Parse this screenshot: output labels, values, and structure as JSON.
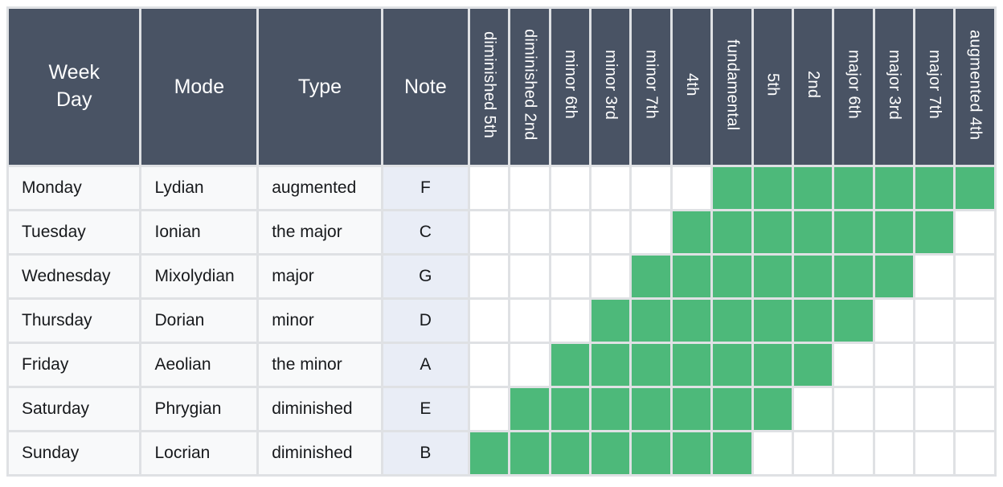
{
  "header": {
    "week_day": "Week\nDay",
    "mode": "Mode",
    "type": "Type",
    "note": "Note"
  },
  "colors": {
    "header_bg": "#495364",
    "highlight_green": "#4db97a",
    "note_column_bg": "#e9edf6",
    "row_bg": "#f8f9fa",
    "grid_border": "#dfe1e4",
    "header_text": "#ffffff",
    "body_text": "#17191c"
  },
  "chart_data": {
    "type": "table",
    "fixed_columns": [
      "Week Day",
      "Mode",
      "Type",
      "Note"
    ],
    "interval_columns": [
      "diminished 5th",
      "diminished 2nd",
      "minor 6th",
      "minor 3rd",
      "minor 7th",
      "4th",
      "fundamental",
      "5th",
      "2nd",
      "major 6th",
      "major 3rd",
      "major 7th",
      "augmented 4th"
    ],
    "legend": "green cell = interval present in mode",
    "rows": [
      {
        "week_day": "Monday",
        "mode": "Lydian",
        "type": "augmented",
        "note": "F",
        "matrix": [
          0,
          0,
          0,
          0,
          0,
          0,
          1,
          1,
          1,
          1,
          1,
          1,
          1
        ],
        "intervals_present": [
          "fundamental",
          "5th",
          "2nd",
          "major 6th",
          "major 3rd",
          "major 7th",
          "augmented 4th"
        ]
      },
      {
        "week_day": "Tuesday",
        "mode": "Ionian",
        "type": "the major",
        "note": "C",
        "matrix": [
          0,
          0,
          0,
          0,
          0,
          1,
          1,
          1,
          1,
          1,
          1,
          1,
          0
        ],
        "intervals_present": [
          "4th",
          "fundamental",
          "5th",
          "2nd",
          "major 6th",
          "major 3rd",
          "major 7th"
        ]
      },
      {
        "week_day": "Wednesday",
        "mode": "Mixolydian",
        "type": "major",
        "note": "G",
        "matrix": [
          0,
          0,
          0,
          0,
          1,
          1,
          1,
          1,
          1,
          1,
          1,
          0,
          0
        ],
        "intervals_present": [
          "minor 7th",
          "4th",
          "fundamental",
          "5th",
          "2nd",
          "major 6th",
          "major 3rd"
        ]
      },
      {
        "week_day": "Thursday",
        "mode": "Dorian",
        "type": "minor",
        "note": "D",
        "matrix": [
          0,
          0,
          0,
          1,
          1,
          1,
          1,
          1,
          1,
          1,
          0,
          0,
          0
        ],
        "intervals_present": [
          "minor 3rd",
          "minor 7th",
          "4th",
          "fundamental",
          "5th",
          "2nd",
          "major 6th"
        ]
      },
      {
        "week_day": "Friday",
        "mode": "Aeolian",
        "type": "the minor",
        "note": "A",
        "matrix": [
          0,
          0,
          1,
          1,
          1,
          1,
          1,
          1,
          1,
          0,
          0,
          0,
          0
        ],
        "intervals_present": [
          "minor 6th",
          "minor 3rd",
          "minor 7th",
          "4th",
          "fundamental",
          "5th",
          "2nd"
        ]
      },
      {
        "week_day": "Saturday",
        "mode": "Phrygian",
        "type": "diminished",
        "note": "E",
        "matrix": [
          0,
          1,
          1,
          1,
          1,
          1,
          1,
          1,
          0,
          0,
          0,
          0,
          0
        ],
        "intervals_present": [
          "diminished 2nd",
          "minor 6th",
          "minor 3rd",
          "minor 7th",
          "4th",
          "fundamental",
          "5th"
        ]
      },
      {
        "week_day": "Sunday",
        "mode": "Locrian",
        "type": "diminished",
        "note": "B",
        "matrix": [
          1,
          1,
          1,
          1,
          1,
          1,
          1,
          0,
          0,
          0,
          0,
          0,
          0
        ],
        "intervals_present": [
          "diminished 5th",
          "diminished 2nd",
          "minor 6th",
          "minor 3rd",
          "minor 7th",
          "4th",
          "fundamental"
        ]
      }
    ]
  }
}
